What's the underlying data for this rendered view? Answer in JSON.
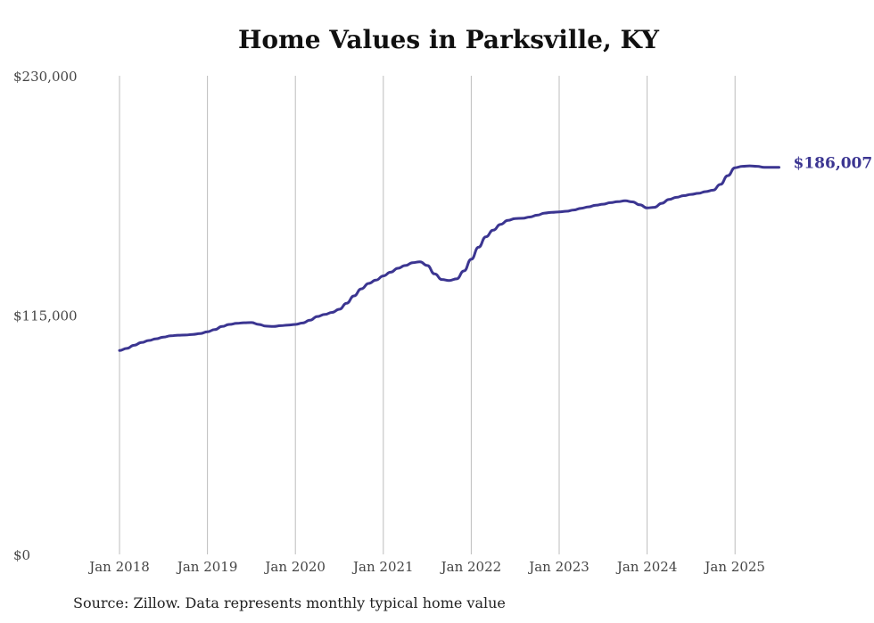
{
  "chart_data": {
    "type": "line",
    "title": "Home Values in Parksville, KY",
    "source": "Source: Zillow. Data represents monthly typical home value",
    "ylim": [
      0,
      230000
    ],
    "yticks": [
      0,
      115000,
      230000
    ],
    "ytick_labels": [
      "$0",
      "$115,000",
      "$230,000"
    ],
    "xlim": [
      "2018-01",
      "2025-07"
    ],
    "xticks": [
      "2018-01",
      "2019-01",
      "2020-01",
      "2021-01",
      "2022-01",
      "2023-01",
      "2024-01",
      "2025-01"
    ],
    "xtick_labels": [
      "Jan 2018",
      "Jan 2019",
      "Jan 2020",
      "Jan 2021",
      "Jan 2022",
      "Jan 2023",
      "Jan 2024",
      "Jan 2025"
    ],
    "grid": {
      "vertical": true,
      "horizontal": false
    },
    "line_color": "#3b3591",
    "end_label": "$186,007",
    "series": [
      {
        "x": [
          "2018-01",
          "2018-02",
          "2018-03",
          "2018-04",
          "2018-05",
          "2018-06",
          "2018-07",
          "2018-08",
          "2018-09",
          "2018-10",
          "2018-11",
          "2018-12",
          "2019-01",
          "2019-02",
          "2019-03",
          "2019-04",
          "2019-05",
          "2019-06",
          "2019-07",
          "2019-08",
          "2019-09",
          "2019-10",
          "2019-11",
          "2019-12",
          "2020-01",
          "2020-02",
          "2020-03",
          "2020-04",
          "2020-05",
          "2020-06",
          "2020-07",
          "2020-08",
          "2020-09",
          "2020-10",
          "2020-11",
          "2020-12",
          "2021-01",
          "2021-02",
          "2021-03",
          "2021-04",
          "2021-05",
          "2021-06",
          "2021-07",
          "2021-08",
          "2021-09",
          "2021-10",
          "2021-11",
          "2021-12",
          "2022-01",
          "2022-02",
          "2022-03",
          "2022-04",
          "2022-05",
          "2022-06",
          "2022-07",
          "2022-08",
          "2022-09",
          "2022-10",
          "2022-11",
          "2022-12",
          "2023-01",
          "2023-02",
          "2023-03",
          "2023-04",
          "2023-05",
          "2023-06",
          "2023-07",
          "2023-08",
          "2023-09",
          "2023-10",
          "2023-11",
          "2023-12",
          "2024-01",
          "2024-02",
          "2024-03",
          "2024-04",
          "2024-05",
          "2024-06",
          "2024-07",
          "2024-08",
          "2024-09",
          "2024-10",
          "2024-11",
          "2024-12",
          "2025-01",
          "2025-02",
          "2025-03",
          "2025-04",
          "2025-05",
          "2025-06",
          "2025-07"
        ],
        "values": [
          98000,
          99000,
          100500,
          101800,
          102800,
          103600,
          104400,
          105000,
          105300,
          105400,
          105700,
          106100,
          107000,
          108000,
          109500,
          110500,
          111000,
          111300,
          111400,
          110500,
          109700,
          109500,
          109900,
          110200,
          110500,
          111200,
          112500,
          114300,
          115300,
          116300,
          117800,
          120700,
          124200,
          127600,
          130200,
          131800,
          133800,
          135600,
          137500,
          138800,
          140200,
          140600,
          138800,
          134800,
          132100,
          131600,
          132400,
          136200,
          141800,
          147600,
          152600,
          155800,
          158600,
          160500,
          161400,
          161500,
          162100,
          163000,
          164000,
          164400,
          164600,
          164900,
          165500,
          166300,
          167000,
          167800,
          168300,
          169000,
          169500,
          169900,
          169400,
          168000,
          166500,
          166800,
          168700,
          170600,
          171600,
          172400,
          173000,
          173500,
          174300,
          175000,
          177800,
          182000,
          185800,
          186500,
          186700,
          186500,
          186007,
          186007,
          186007
        ]
      }
    ]
  }
}
